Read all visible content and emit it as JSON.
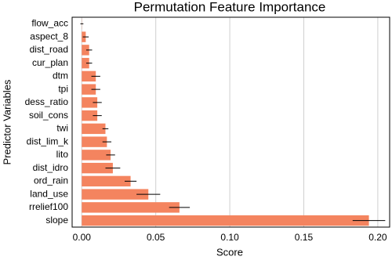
{
  "chart_data": {
    "type": "barh",
    "title": "Permutation Feature Importance",
    "x_label": "Score",
    "y_label": "Predictor Variables",
    "categories": [
      "flow_acc",
      "aspect_8",
      "dist_road",
      "cur_plan",
      "dtm",
      "tpi",
      "dess_ratio",
      "soil_cons",
      "twi",
      "dist_lim_k",
      "lito",
      "dist_idro",
      "ord_rain",
      "land_use",
      "rrelief100",
      "slope"
    ],
    "values": [
      0.0001,
      0.0027,
      0.005,
      0.005,
      0.0095,
      0.0095,
      0.0105,
      0.0105,
      0.016,
      0.017,
      0.0195,
      0.021,
      0.033,
      0.045,
      0.066,
      0.194
    ],
    "errors": [
      0.001,
      0.002,
      0.002,
      0.002,
      0.003,
      0.003,
      0.003,
      0.003,
      0.002,
      0.003,
      0.003,
      0.005,
      0.004,
      0.008,
      0.007,
      0.011
    ],
    "color": "#f4845f",
    "error_color": "#000000",
    "xlim": [
      -0.0065,
      0.208
    ],
    "xticks": [
      {
        "value": 0,
        "label": "0.00"
      },
      0.05,
      {
        "value": 0.1,
        "label": "0.10"
      },
      0.15,
      {
        "value": 0.2,
        "label": "0.20"
      }
    ],
    "grid": true
  }
}
